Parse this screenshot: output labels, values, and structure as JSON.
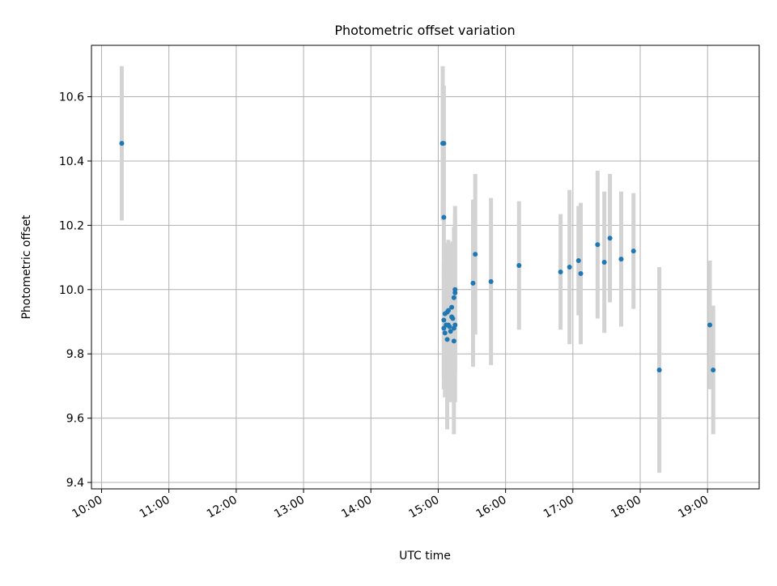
{
  "chart_data": {
    "type": "scatter",
    "title": "Photometric offset variation",
    "xlabel": "UTC time",
    "ylabel": "Photometric offset",
    "x_axis_type": "time",
    "xlim": [
      "09:51",
      "19:46"
    ],
    "ylim": [
      9.38,
      10.76
    ],
    "x_ticks": [
      "10:00",
      "11:00",
      "12:00",
      "13:00",
      "14:00",
      "15:00",
      "16:00",
      "17:00",
      "18:00",
      "19:00"
    ],
    "y_ticks": [
      "9.4",
      "9.6",
      "9.8",
      "10.0",
      "10.2",
      "10.4",
      "10.6"
    ],
    "grid": true,
    "marker_color": "#1f77b4",
    "errorbar_color": "#d3d3d3",
    "points": [
      {
        "t": "10:18",
        "y": 10.455,
        "err": 0.24
      },
      {
        "t": "15:04",
        "y": 10.455,
        "err": 0.24
      },
      {
        "t": "15:05",
        "y": 10.455,
        "err": 0.18
      },
      {
        "t": "15:05",
        "y": 10.225,
        "err": 0.2
      },
      {
        "t": "15:05",
        "y": 9.88,
        "err": 0.19
      },
      {
        "t": "15:05",
        "y": 9.905,
        "err": 0.18
      },
      {
        "t": "15:06",
        "y": 9.865,
        "err": 0.2
      },
      {
        "t": "15:06",
        "y": 9.925,
        "err": 0.22
      },
      {
        "t": "15:07",
        "y": 9.89,
        "err": 0.22
      },
      {
        "t": "15:08",
        "y": 9.93,
        "err": 0.2
      },
      {
        "t": "15:08",
        "y": 9.845,
        "err": 0.28
      },
      {
        "t": "15:09",
        "y": 9.935,
        "err": 0.22
      },
      {
        "t": "15:09",
        "y": 9.89,
        "err": 0.24
      },
      {
        "t": "15:10",
        "y": 9.885,
        "err": 0.21
      },
      {
        "t": "15:11",
        "y": 9.87,
        "err": 0.22
      },
      {
        "t": "15:12",
        "y": 9.945,
        "err": 0.2
      },
      {
        "t": "15:12",
        "y": 9.915,
        "err": 0.22
      },
      {
        "t": "15:13",
        "y": 9.91,
        "err": 0.24
      },
      {
        "t": "15:14",
        "y": 9.88,
        "err": 0.22
      },
      {
        "t": "15:14",
        "y": 9.84,
        "err": 0.29
      },
      {
        "t": "15:14",
        "y": 9.975,
        "err": 0.22
      },
      {
        "t": "15:15",
        "y": 9.89,
        "err": 0.24
      },
      {
        "t": "15:15",
        "y": 9.99,
        "err": 0.24
      },
      {
        "t": "15:15",
        "y": 10.0,
        "err": 0.26
      },
      {
        "t": "15:31",
        "y": 10.02,
        "err": 0.26
      },
      {
        "t": "15:33",
        "y": 10.11,
        "err": 0.25
      },
      {
        "t": "15:47",
        "y": 10.025,
        "err": 0.26
      },
      {
        "t": "16:12",
        "y": 10.075,
        "err": 0.2
      },
      {
        "t": "16:49",
        "y": 10.055,
        "err": 0.18
      },
      {
        "t": "16:57",
        "y": 10.07,
        "err": 0.24
      },
      {
        "t": "17:05",
        "y": 10.09,
        "err": 0.17
      },
      {
        "t": "17:07",
        "y": 10.05,
        "err": 0.22
      },
      {
        "t": "17:22",
        "y": 10.14,
        "err": 0.23
      },
      {
        "t": "17:28",
        "y": 10.085,
        "err": 0.22
      },
      {
        "t": "17:33",
        "y": 10.16,
        "err": 0.2
      },
      {
        "t": "17:43",
        "y": 10.095,
        "err": 0.21
      },
      {
        "t": "17:54",
        "y": 10.12,
        "err": 0.18
      },
      {
        "t": "18:17",
        "y": 9.75,
        "err": 0.32
      },
      {
        "t": "19:02",
        "y": 9.89,
        "err": 0.2
      },
      {
        "t": "19:05",
        "y": 9.75,
        "err": 0.2
      }
    ]
  }
}
